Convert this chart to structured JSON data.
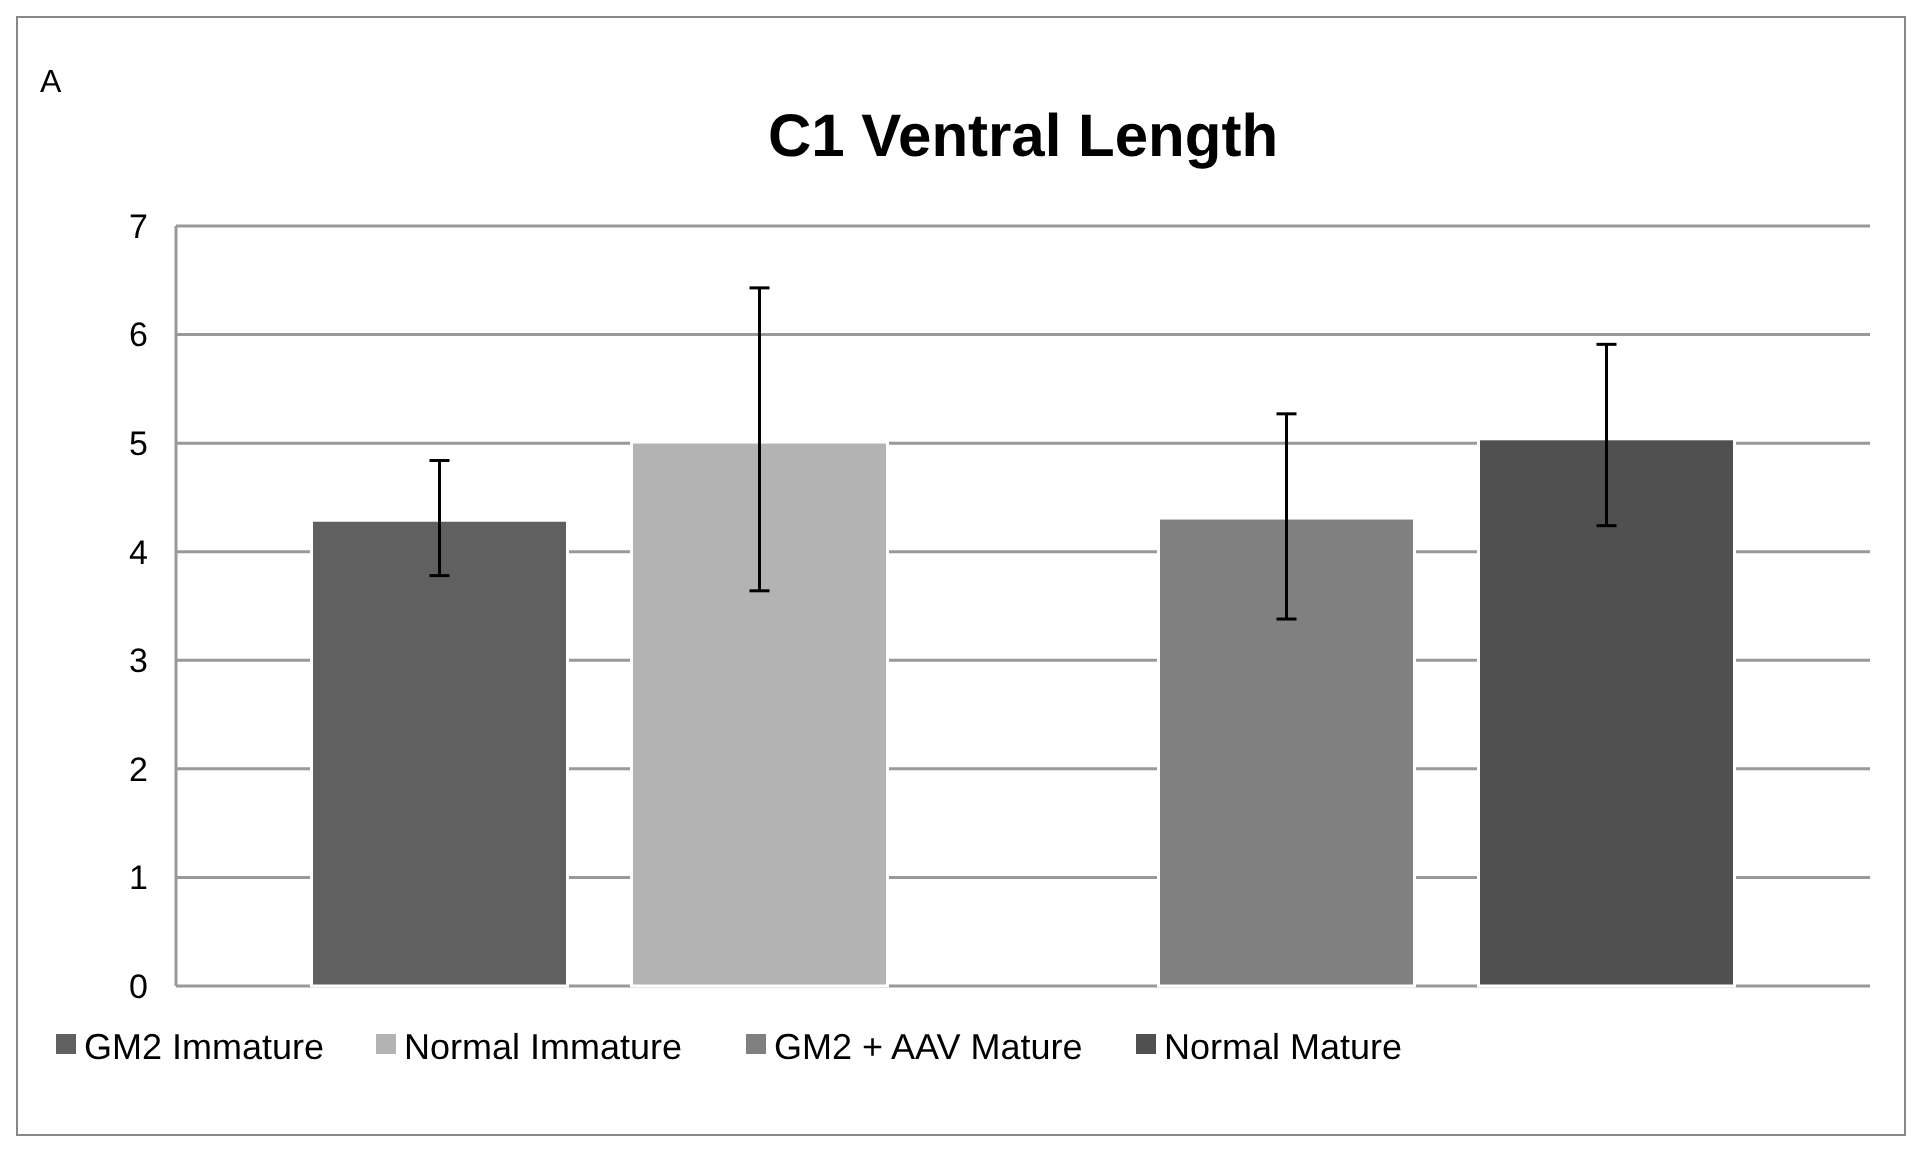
{
  "chart_data": {
    "type": "bar",
    "title": "C1 Ventral Length",
    "annotations": [
      "A"
    ],
    "categories": [
      null,
      null
    ],
    "series": [
      {
        "name": "GM2 Immature",
        "color": "#606060",
        "values": [
          4.29,
          null
        ],
        "errors": [
          [
            3.78,
            4.84
          ],
          null
        ]
      },
      {
        "name": "Normal Immature",
        "color": "#b3b3b3",
        "values": [
          5.01,
          null
        ],
        "errors": [
          [
            3.64,
            6.43
          ],
          null
        ]
      },
      {
        "name": "GM2 + AAV Mature",
        "color": "#808080",
        "values": [
          null,
          4.31
        ],
        "errors": [
          null,
          [
            3.38,
            5.27
          ]
        ]
      },
      {
        "name": "Normal Mature",
        "color": "#505050",
        "values": [
          null,
          5.04
        ],
        "errors": [
          null,
          [
            4.24,
            5.91
          ]
        ]
      }
    ],
    "ylim": [
      0,
      7
    ],
    "yticks": [
      0,
      1,
      2,
      3,
      4,
      5,
      6,
      7
    ],
    "grid": "y",
    "legend": "bottom"
  }
}
